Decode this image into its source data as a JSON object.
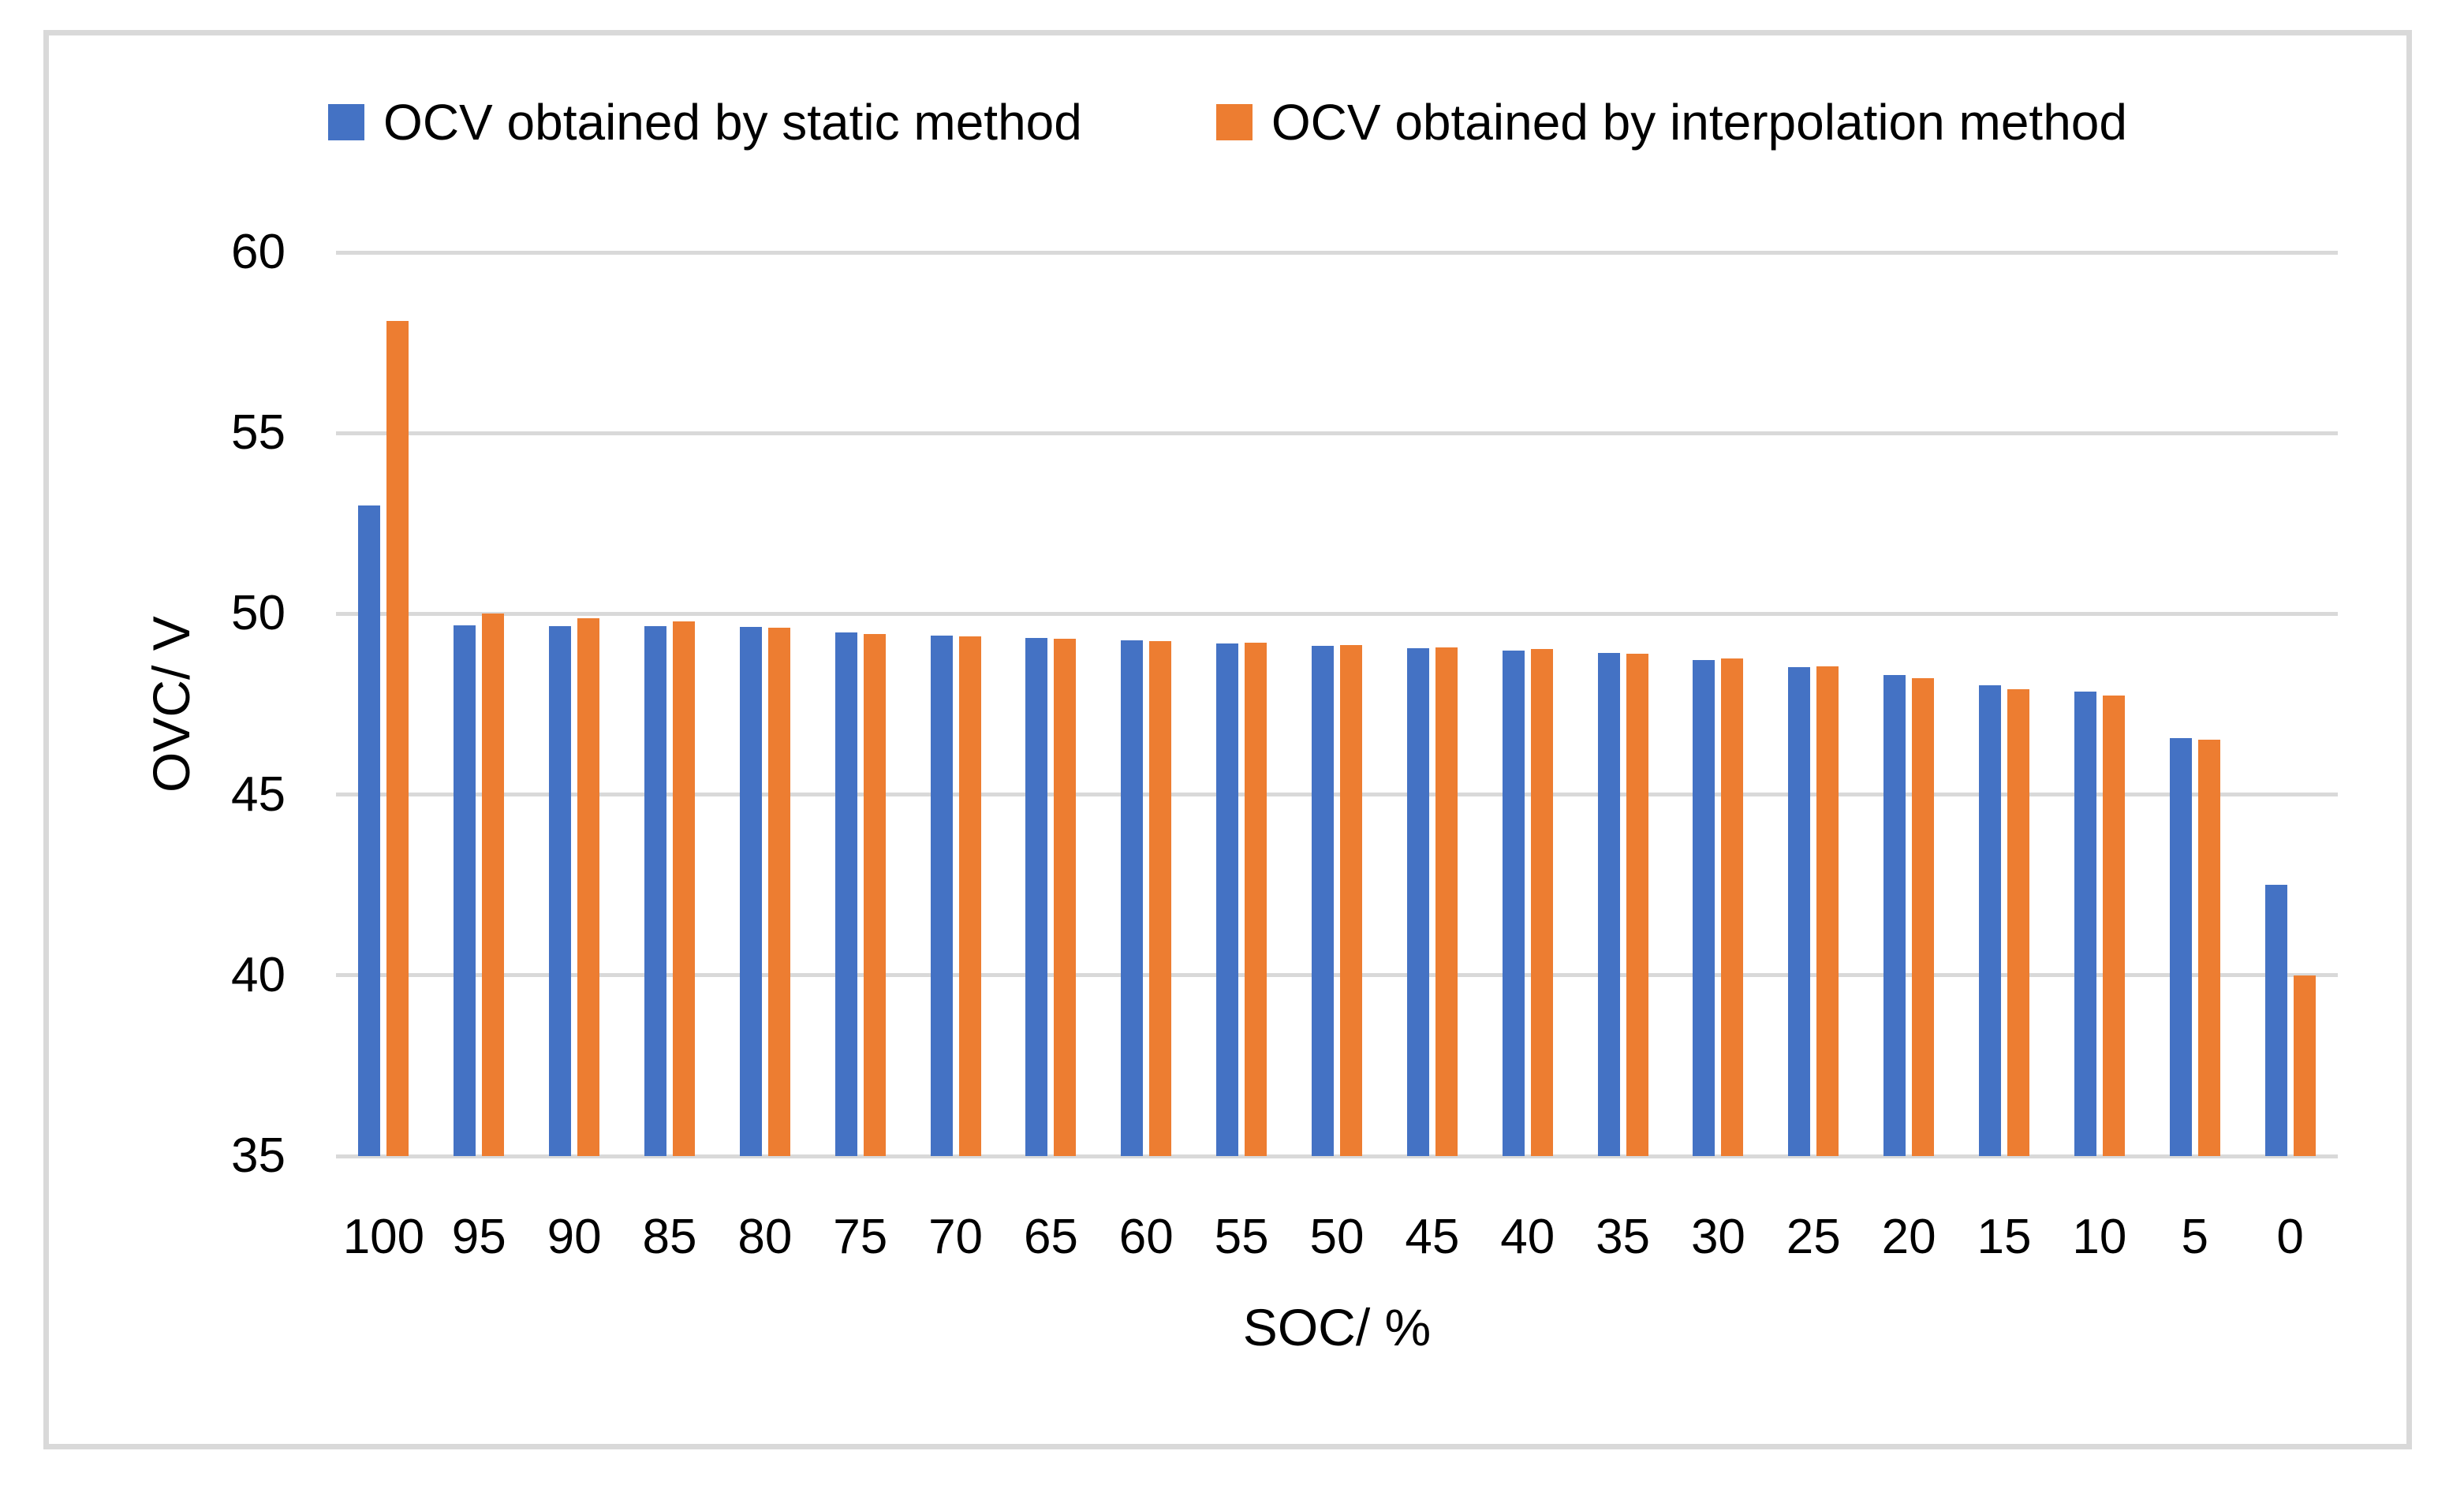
{
  "figure": {
    "background": "#ffffff",
    "border_color": "#d9d9d9",
    "gridline_color": "#d9d9d9",
    "text_color": "#000000"
  },
  "legend": [
    {
      "label": "OCV obtained by static method",
      "color": "#4472C4"
    },
    {
      "label": "OCV obtained by interpolation method",
      "color": "#ED7D31"
    }
  ],
  "chart_data": {
    "type": "bar",
    "title": "",
    "xlabel": "SOC/ %",
    "ylabel": "OVC/ V",
    "categories": [
      100,
      95,
      90,
      85,
      80,
      75,
      70,
      65,
      60,
      55,
      50,
      45,
      40,
      35,
      30,
      25,
      20,
      15,
      10,
      5,
      0
    ],
    "series": [
      {
        "name": "OCV obtained by static method",
        "color": "#4472C4",
        "values": [
          53.0,
          49.68,
          49.67,
          49.65,
          49.63,
          49.48,
          49.4,
          49.33,
          49.26,
          49.18,
          49.12,
          49.05,
          48.98,
          48.92,
          48.73,
          48.52,
          48.3,
          48.03,
          47.85,
          46.57,
          42.5
        ]
      },
      {
        "name": "OCV obtained by interpolation method",
        "color": "#ED7D31",
        "values": [
          58.1,
          50.0,
          49.87,
          49.78,
          49.62,
          49.45,
          49.38,
          49.3,
          49.24,
          49.2,
          49.13,
          49.07,
          49.02,
          48.9,
          48.76,
          48.54,
          48.22,
          47.92,
          47.75,
          46.52,
          40.0
        ]
      }
    ],
    "ylim": [
      35,
      60
    ],
    "yticks": [
      35,
      40,
      45,
      50,
      55,
      60
    ],
    "grid": true,
    "legend_position": "top"
  }
}
